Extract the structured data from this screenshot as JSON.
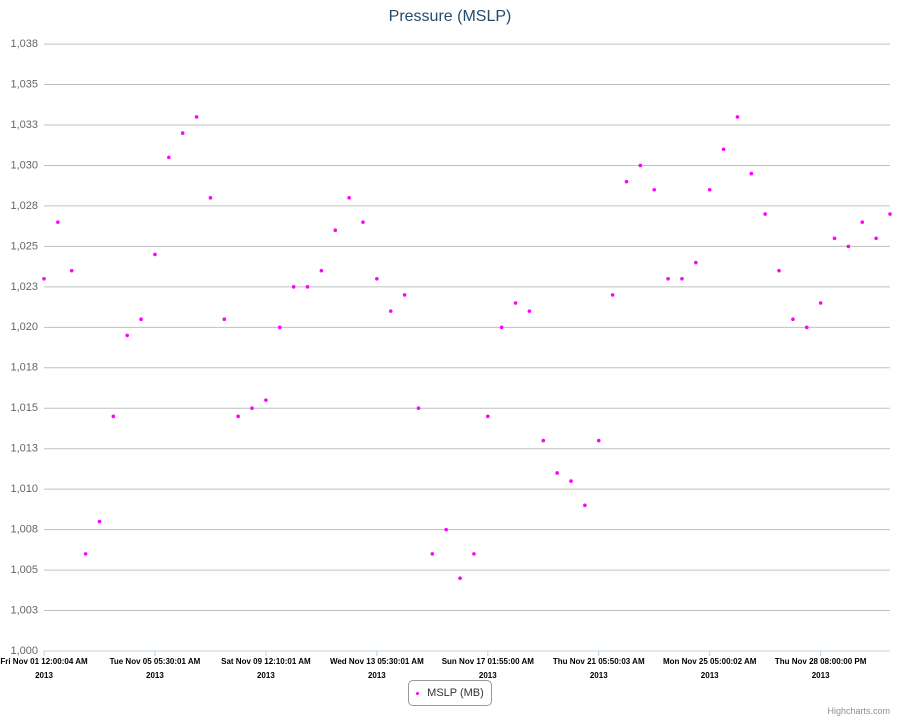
{
  "chart_data": {
    "type": "scatter",
    "title": "Pressure (MSLP)",
    "categories": [
      "Fri Nov 01 12:00:04 AM\n2013",
      null,
      null,
      null,
      null,
      null,
      null,
      null,
      "Tue Nov 05 05:30:01 AM\n2013",
      null,
      null,
      null,
      null,
      null,
      null,
      null,
      "Sat Nov 09 12:10:01 AM\n2013",
      null,
      null,
      null,
      null,
      null,
      null,
      null,
      "Wed Nov 13 05:30:01 AM\n2013",
      null,
      null,
      null,
      null,
      null,
      null,
      null,
      "Sun Nov 17 01:55:00 AM\n2013",
      null,
      null,
      null,
      null,
      null,
      null,
      null,
      "Thu Nov 21 05:50:03 AM\n2013",
      null,
      null,
      null,
      null,
      null,
      null,
      null,
      "Mon Nov 25 05:00:02 AM\n2013",
      null,
      null,
      null,
      null,
      null,
      null,
      null,
      "Thu Nov 28 08:00:00 PM\n2013",
      null,
      null,
      null,
      null,
      null
    ],
    "series": [
      {
        "name": "MSLP (MB)",
        "color": "#ff00ff",
        "values": [
          1023,
          1026.5,
          1023.5,
          1006,
          1008,
          1014.5,
          1019.5,
          1020.5,
          1024.5,
          1030.5,
          1032,
          1033,
          1028,
          1020.5,
          1014.5,
          1015,
          1015.5,
          1020,
          1022.5,
          1022.5,
          1023.5,
          1026,
          1028,
          1026.5,
          1023,
          1021,
          1022,
          1015,
          1006,
          1007.5,
          1004.5,
          1006,
          1014.5,
          1020,
          1021.5,
          1021,
          1013,
          1011,
          1010.5,
          1009,
          1013,
          1022,
          1029,
          1030,
          1028.5,
          1023,
          1023,
          1024,
          1028.5,
          1031,
          1033,
          1029.5,
          1027,
          1023.5,
          1020.5,
          1020,
          1021.5,
          1025.5,
          1025,
          1026.5,
          1025.5,
          1027
        ]
      }
    ],
    "ylim": [
      1000,
      1038
    ],
    "yticks": [
      {
        "value": 1000,
        "label": "1,000"
      },
      {
        "value": 1002.5,
        "label": "1,003"
      },
      {
        "value": 1005,
        "label": "1,005"
      },
      {
        "value": 1007.5,
        "label": "1,008"
      },
      {
        "value": 1010,
        "label": "1,010"
      },
      {
        "value": 1012.5,
        "label": "1,013"
      },
      {
        "value": 1015,
        "label": "1,015"
      },
      {
        "value": 1017.5,
        "label": "1,018"
      },
      {
        "value": 1020,
        "label": "1,020"
      },
      {
        "value": 1022.5,
        "label": "1,023"
      },
      {
        "value": 1025,
        "label": "1,025"
      },
      {
        "value": 1027.5,
        "label": "1,028"
      },
      {
        "value": 1030,
        "label": "1,030"
      },
      {
        "value": 1032.5,
        "label": "1,033"
      },
      {
        "value": 1035,
        "label": "1,035"
      },
      {
        "value": 1037.5,
        "label": "1,038"
      }
    ],
    "grid": true,
    "credits": "Highcharts.com"
  }
}
